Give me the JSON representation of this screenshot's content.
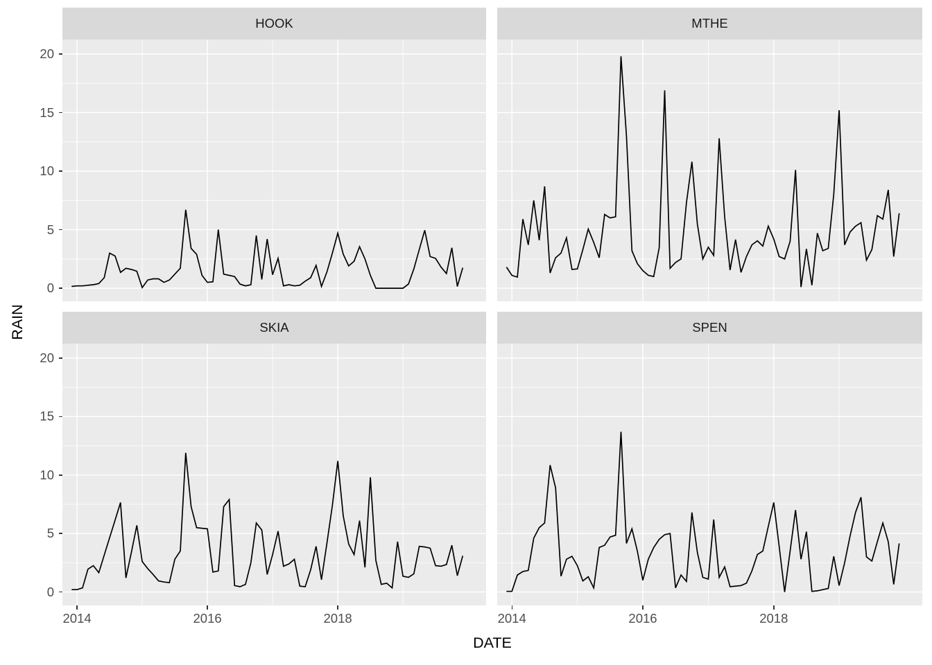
{
  "figure": {
    "xlabel": "DATE",
    "ylabel": "RAIN"
  },
  "chart_data": {
    "type": "line",
    "title": "",
    "xlabel": "DATE",
    "ylabel": "RAIN",
    "legend_position": "none",
    "grid": true,
    "x_start": "2013-12",
    "x_frequency": "monthly",
    "x_domain": [
      2013.775,
      2020.27
    ],
    "y_domain": [
      -1.12,
      21.24
    ],
    "x_ticks": [
      {
        "value": 2014,
        "label": "2014"
      },
      {
        "value": 2016,
        "label": "2016"
      },
      {
        "value": 2018,
        "label": "2018"
      }
    ],
    "x_minor_ticks": [
      2015,
      2017,
      2019
    ],
    "y_ticks": [
      {
        "value": 0,
        "label": "0"
      },
      {
        "value": 5,
        "label": "5"
      },
      {
        "value": 10,
        "label": "10"
      },
      {
        "value": 15,
        "label": "15"
      },
      {
        "value": 20,
        "label": "20"
      }
    ],
    "y_minor_ticks": [
      2.5,
      7.5,
      12.5,
      17.5
    ],
    "colors": {
      "panel_bg": "#EBEBEB",
      "strip_bg": "#D9D9D9",
      "grid": "#FFFFFF",
      "line": "#000000",
      "tick_label": "#4D4D4D",
      "axis_title": "#000000",
      "strip_text": "#1A1A1A",
      "tick_mark": "#333333"
    },
    "facets": [
      {
        "label": "HOOK",
        "values": [
          0.15,
          0.2,
          0.2,
          0.25,
          0.3,
          0.4,
          0.9,
          3.0,
          2.75,
          1.35,
          1.7,
          1.6,
          1.45,
          0.05,
          0.7,
          0.8,
          0.8,
          0.5,
          0.7,
          1.2,
          1.7,
          6.7,
          3.4,
          2.9,
          1.1,
          0.5,
          0.55,
          5.0,
          1.2,
          1.1,
          1.0,
          0.35,
          0.2,
          0.3,
          4.5,
          0.75,
          4.2,
          1.15,
          2.55,
          0.2,
          0.3,
          0.2,
          0.25,
          0.6,
          0.9,
          1.95,
          0.15,
          1.4,
          3.0,
          4.7,
          2.9,
          1.9,
          2.3,
          3.55,
          2.5,
          1.1,
          0.0,
          0.0,
          0.0,
          0.0,
          0.0,
          0.0,
          0.35,
          1.65,
          3.3,
          4.95,
          2.7,
          2.55,
          1.8,
          1.25,
          3.45,
          0.15,
          1.75
        ]
      },
      {
        "label": "MTHE",
        "values": [
          1.8,
          1.1,
          0.95,
          5.9,
          3.7,
          7.5,
          4.1,
          8.7,
          1.3,
          2.6,
          3.0,
          4.3,
          1.6,
          1.65,
          3.3,
          5.05,
          3.9,
          2.6,
          6.3,
          6.0,
          6.1,
          19.8,
          13.0,
          3.2,
          2.1,
          1.5,
          1.1,
          1.0,
          3.45,
          16.9,
          1.7,
          2.2,
          2.5,
          7.3,
          10.8,
          5.5,
          2.5,
          3.5,
          2.8,
          12.8,
          6.1,
          1.55,
          4.15,
          1.35,
          2.7,
          3.7,
          4.05,
          3.6,
          5.3,
          4.2,
          2.7,
          2.5,
          4.0,
          10.1,
          0.1,
          3.35,
          0.25,
          4.7,
          3.2,
          3.4,
          8.0,
          15.2,
          3.7,
          4.8,
          5.3,
          5.6,
          2.4,
          3.3,
          6.2,
          5.9,
          8.4,
          2.7,
          6.4
        ]
      },
      {
        "label": "SKIA",
        "values": [
          0.2,
          0.2,
          0.35,
          1.95,
          2.25,
          1.65,
          3.15,
          4.65,
          6.15,
          7.65,
          1.2,
          3.4,
          5.7,
          2.6,
          2.0,
          1.5,
          0.95,
          0.85,
          0.8,
          2.8,
          3.5,
          11.9,
          7.3,
          5.5,
          5.45,
          5.4,
          1.7,
          1.8,
          7.3,
          7.9,
          0.55,
          0.45,
          0.65,
          2.5,
          5.9,
          5.3,
          1.5,
          3.2,
          5.2,
          2.2,
          2.4,
          2.8,
          0.5,
          0.45,
          1.9,
          3.9,
          1.05,
          4.2,
          7.4,
          11.2,
          6.5,
          4.1,
          3.2,
          6.1,
          2.1,
          9.8,
          2.7,
          0.65,
          0.75,
          0.35,
          4.3,
          1.35,
          1.25,
          1.55,
          3.9,
          3.85,
          3.75,
          2.25,
          2.2,
          2.35,
          4.0,
          1.4,
          3.1
        ]
      },
      {
        "label": "SPEN",
        "values": [
          0.05,
          0.05,
          1.45,
          1.75,
          1.85,
          4.6,
          5.5,
          5.9,
          10.85,
          8.9,
          1.35,
          2.8,
          3.05,
          2.25,
          0.95,
          1.3,
          0.35,
          3.8,
          4.0,
          4.7,
          4.85,
          13.7,
          4.15,
          5.4,
          3.5,
          1.0,
          2.8,
          3.8,
          4.5,
          4.9,
          5.0,
          0.35,
          1.45,
          0.9,
          6.8,
          3.4,
          1.25,
          1.1,
          6.2,
          1.25,
          2.15,
          0.45,
          0.5,
          0.55,
          0.75,
          1.8,
          3.2,
          3.5,
          5.6,
          7.65,
          3.9,
          0.0,
          3.5,
          7.0,
          2.8,
          5.15,
          0.05,
          0.1,
          0.2,
          0.3,
          3.05,
          0.55,
          2.5,
          4.8,
          6.8,
          8.1,
          3.0,
          2.65,
          4.3,
          5.9,
          4.3,
          0.65,
          4.15
        ]
      }
    ]
  }
}
